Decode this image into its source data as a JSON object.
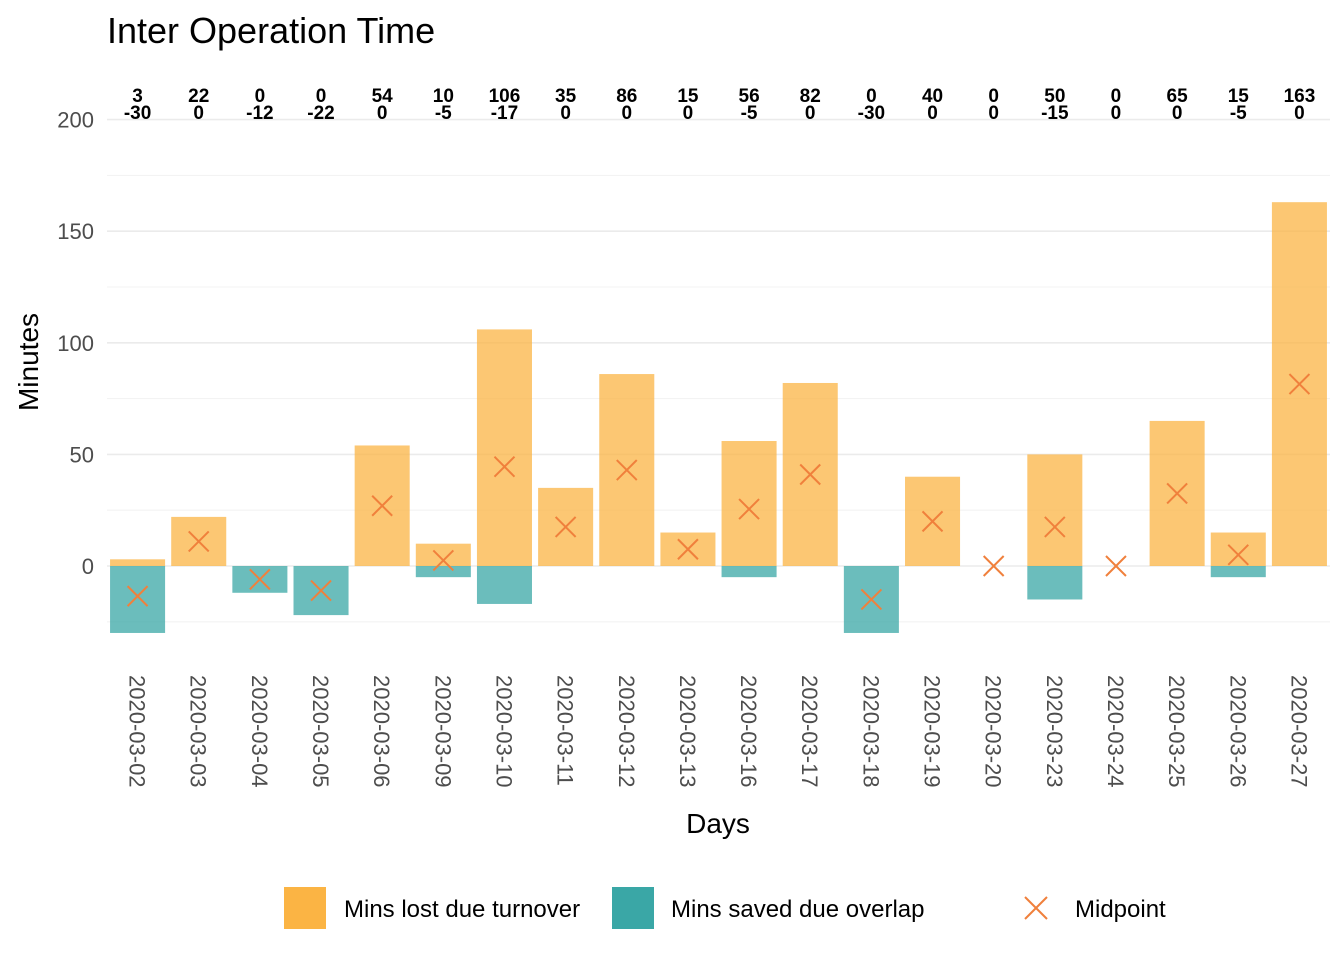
{
  "chart_data": {
    "type": "bar",
    "title": "Inter Operation Time",
    "xlabel": "Days",
    "ylabel": "Minutes",
    "ylim": [
      -35,
      200
    ],
    "yticks": [
      0,
      50,
      100,
      150,
      200
    ],
    "grid": true,
    "legend_position": "bottom",
    "categories": [
      "2020-03-02",
      "2020-03-03",
      "2020-03-04",
      "2020-03-05",
      "2020-03-06",
      "2020-03-09",
      "2020-03-10",
      "2020-03-11",
      "2020-03-12",
      "2020-03-13",
      "2020-03-16",
      "2020-03-17",
      "2020-03-18",
      "2020-03-19",
      "2020-03-20",
      "2020-03-23",
      "2020-03-24",
      "2020-03-25",
      "2020-03-26",
      "2020-03-27"
    ],
    "series": [
      {
        "name": "Mins lost due turnover",
        "color": "#fbb444",
        "type": "bar",
        "values": [
          3,
          22,
          0,
          0,
          54,
          10,
          106,
          35,
          86,
          15,
          56,
          82,
          0,
          40,
          0,
          50,
          0,
          65,
          15,
          163
        ]
      },
      {
        "name": "Mins saved due overlap",
        "color": "#3aa7a6",
        "type": "bar",
        "values": [
          -30,
          0,
          -12,
          -22,
          0,
          -5,
          -17,
          0,
          0,
          0,
          -5,
          0,
          -30,
          0,
          0,
          -15,
          0,
          0,
          -5,
          0
        ]
      },
      {
        "name": "Midpoint",
        "color": "#f0803c",
        "type": "point",
        "marker": "x",
        "values": [
          -13.5,
          11,
          -6,
          -11,
          27,
          2.5,
          44.5,
          17.5,
          43,
          7.5,
          25.5,
          41,
          -15,
          20,
          0,
          17.5,
          0,
          32.5,
          5,
          81.5
        ]
      }
    ],
    "top_labels": [
      {
        "lost": "3",
        "saved": "-30"
      },
      {
        "lost": "22",
        "saved": "0"
      },
      {
        "lost": "0",
        "saved": "-12"
      },
      {
        "lost": "0",
        "saved": "-22"
      },
      {
        "lost": "54",
        "saved": "0"
      },
      {
        "lost": "10",
        "saved": "-5"
      },
      {
        "lost": "106",
        "saved": "-17"
      },
      {
        "lost": "35",
        "saved": "0"
      },
      {
        "lost": "86",
        "saved": "0"
      },
      {
        "lost": "15",
        "saved": "0"
      },
      {
        "lost": "56",
        "saved": "-5"
      },
      {
        "lost": "82",
        "saved": "0"
      },
      {
        "lost": "0",
        "saved": "-30"
      },
      {
        "lost": "40",
        "saved": "0"
      },
      {
        "lost": "0",
        "saved": "0"
      },
      {
        "lost": "50",
        "saved": "-15"
      },
      {
        "lost": "0",
        "saved": "0"
      },
      {
        "lost": "65",
        "saved": "0"
      },
      {
        "lost": "15",
        "saved": "-5"
      },
      {
        "lost": "163",
        "saved": "0"
      }
    ],
    "legend": [
      {
        "label": "Mins lost due turnover",
        "color": "#fbb444",
        "kind": "swatch"
      },
      {
        "label": "Mins saved due overlap",
        "color": "#3aa7a6",
        "kind": "swatch"
      },
      {
        "label": "Midpoint",
        "color": "#f0803c",
        "kind": "cross"
      }
    ]
  }
}
